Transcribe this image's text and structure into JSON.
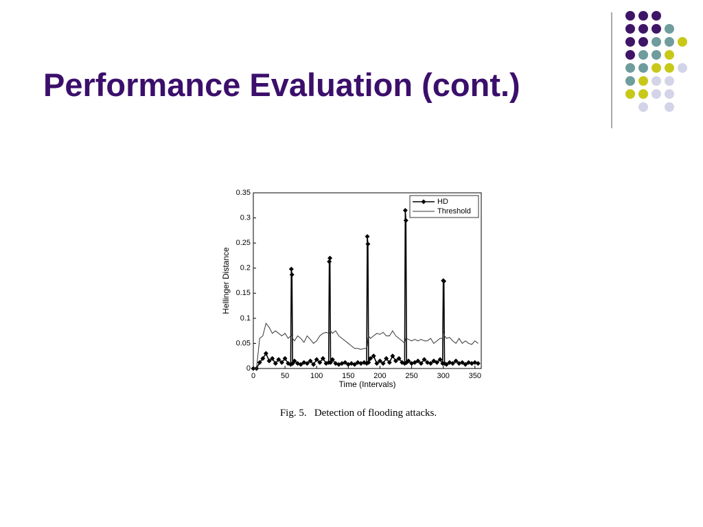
{
  "slide": {
    "title": "Performance Evaluation (cont.)",
    "caption": "Fig. 5.   Detection of flooding attacks."
  },
  "chart_data": {
    "type": "line",
    "xlabel": "Time (Intervals)",
    "ylabel": "Hellinger Distance",
    "x": [
      0,
      5,
      10,
      15,
      20,
      25,
      30,
      35,
      40,
      45,
      50,
      55,
      59,
      60,
      61,
      62,
      65,
      70,
      75,
      80,
      85,
      90,
      95,
      100,
      105,
      110,
      115,
      119,
      120,
      121,
      122,
      125,
      130,
      135,
      140,
      145,
      150,
      155,
      160,
      165,
      170,
      175,
      179,
      180,
      181,
      182,
      185,
      190,
      195,
      200,
      205,
      210,
      215,
      220,
      225,
      230,
      235,
      239,
      240,
      241,
      242,
      245,
      250,
      255,
      260,
      265,
      270,
      275,
      280,
      285,
      290,
      295,
      299,
      300,
      301,
      302,
      305,
      310,
      315,
      320,
      325,
      330,
      335,
      340,
      345,
      350,
      355
    ],
    "series": [
      {
        "name": "HD",
        "color": "#000000",
        "marker": "diamond",
        "values": [
          0,
          0,
          0.012,
          0.02,
          0.03,
          0.015,
          0.02,
          0.01,
          0.018,
          0.012,
          0.02,
          0.01,
          0.008,
          0.198,
          0.187,
          0.01,
          0.015,
          0.01,
          0.008,
          0.012,
          0.01,
          0.015,
          0.008,
          0.018,
          0.012,
          0.02,
          0.01,
          0.012,
          0.213,
          0.22,
          0.012,
          0.018,
          0.01,
          0.008,
          0.01,
          0.012,
          0.008,
          0.01,
          0.008,
          0.012,
          0.01,
          0.012,
          0.01,
          0.263,
          0.248,
          0.012,
          0.02,
          0.025,
          0.01,
          0.015,
          0.01,
          0.02,
          0.012,
          0.025,
          0.015,
          0.02,
          0.012,
          0.01,
          0.315,
          0.295,
          0.012,
          0.015,
          0.01,
          0.012,
          0.015,
          0.01,
          0.018,
          0.012,
          0.01,
          0.015,
          0.012,
          0.018,
          0.01,
          0.175,
          0.174,
          0.01,
          0.008,
          0.012,
          0.01,
          0.015,
          0.01,
          0.012,
          0.008,
          0.012,
          0.01,
          0.012,
          0.01
        ]
      },
      {
        "name": "Threshold",
        "color": "#333333",
        "values": [
          0,
          0,
          0.06,
          0.065,
          0.09,
          0.082,
          0.07,
          0.075,
          0.07,
          0.065,
          0.07,
          0.06,
          0.065,
          0.068,
          0.065,
          0.06,
          0.055,
          0.065,
          0.06,
          0.052,
          0.065,
          0.058,
          0.05,
          0.055,
          0.065,
          0.07,
          0.072,
          0.07,
          0.07,
          0.072,
          0.075,
          0.07,
          0.075,
          0.065,
          0.06,
          0.055,
          0.05,
          0.045,
          0.04,
          0.04,
          0.038,
          0.04,
          0.04,
          0.045,
          0.06,
          0.065,
          0.06,
          0.065,
          0.07,
          0.068,
          0.072,
          0.065,
          0.065,
          0.075,
          0.065,
          0.06,
          0.055,
          0.05,
          0.055,
          0.06,
          0.06,
          0.058,
          0.055,
          0.058,
          0.055,
          0.058,
          0.055,
          0.055,
          0.06,
          0.05,
          0.055,
          0.06,
          0.06,
          0.075,
          0.07,
          0.065,
          0.06,
          0.062,
          0.055,
          0.05,
          0.06,
          0.05,
          0.055,
          0.05,
          0.048,
          0.055,
          0.05
        ]
      }
    ],
    "xlim": [
      0,
      360
    ],
    "xticks": [
      0,
      50,
      100,
      150,
      200,
      250,
      300,
      350
    ],
    "ylim": [
      0,
      0.35
    ],
    "yticks": [
      0,
      0.05,
      0.1,
      0.15,
      0.2,
      0.25,
      0.3,
      0.35
    ],
    "legend": "northeast"
  }
}
